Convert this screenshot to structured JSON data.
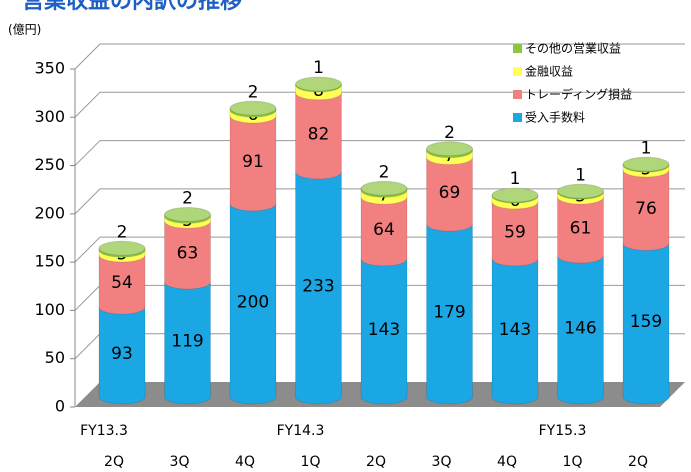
{
  "chart_data": {
    "type": "bar",
    "stacked": true,
    "title": "営業収益の内訳の推移",
    "y_label": "(億円)",
    "categories": [
      "2Q",
      "3Q",
      "4Q",
      "1Q",
      "2Q",
      "3Q",
      "4Q",
      "1Q",
      "2Q"
    ],
    "year_labels": [
      "FY13.3",
      null,
      null,
      "FY14.3",
      null,
      null,
      null,
      "FY15.3",
      null
    ],
    "series": [
      {
        "name": "受入手数料",
        "color": "#1aa7e4",
        "values": [
          93,
          119,
          200,
          233,
          143,
          179,
          143,
          146,
          159
        ]
      },
      {
        "name": "トレーディング損益",
        "color": "#f28080",
        "values": [
          54,
          63,
          91,
          82,
          64,
          69,
          59,
          61,
          76
        ]
      },
      {
        "name": "金融収益",
        "color": "#ffff55",
        "values": [
          5,
          5,
          6,
          8,
          7,
          7,
          6,
          5,
          5
        ]
      },
      {
        "name": "その他の営業収益",
        "color": "#8cc63f",
        "values": [
          2,
          2,
          2,
          1,
          2,
          2,
          1,
          1,
          1
        ]
      }
    ],
    "ylim": [
      0,
      350
    ],
    "yticks": [
      0,
      50,
      100,
      150,
      200,
      250,
      300,
      350
    ],
    "grid": true,
    "legend": "upper right"
  }
}
